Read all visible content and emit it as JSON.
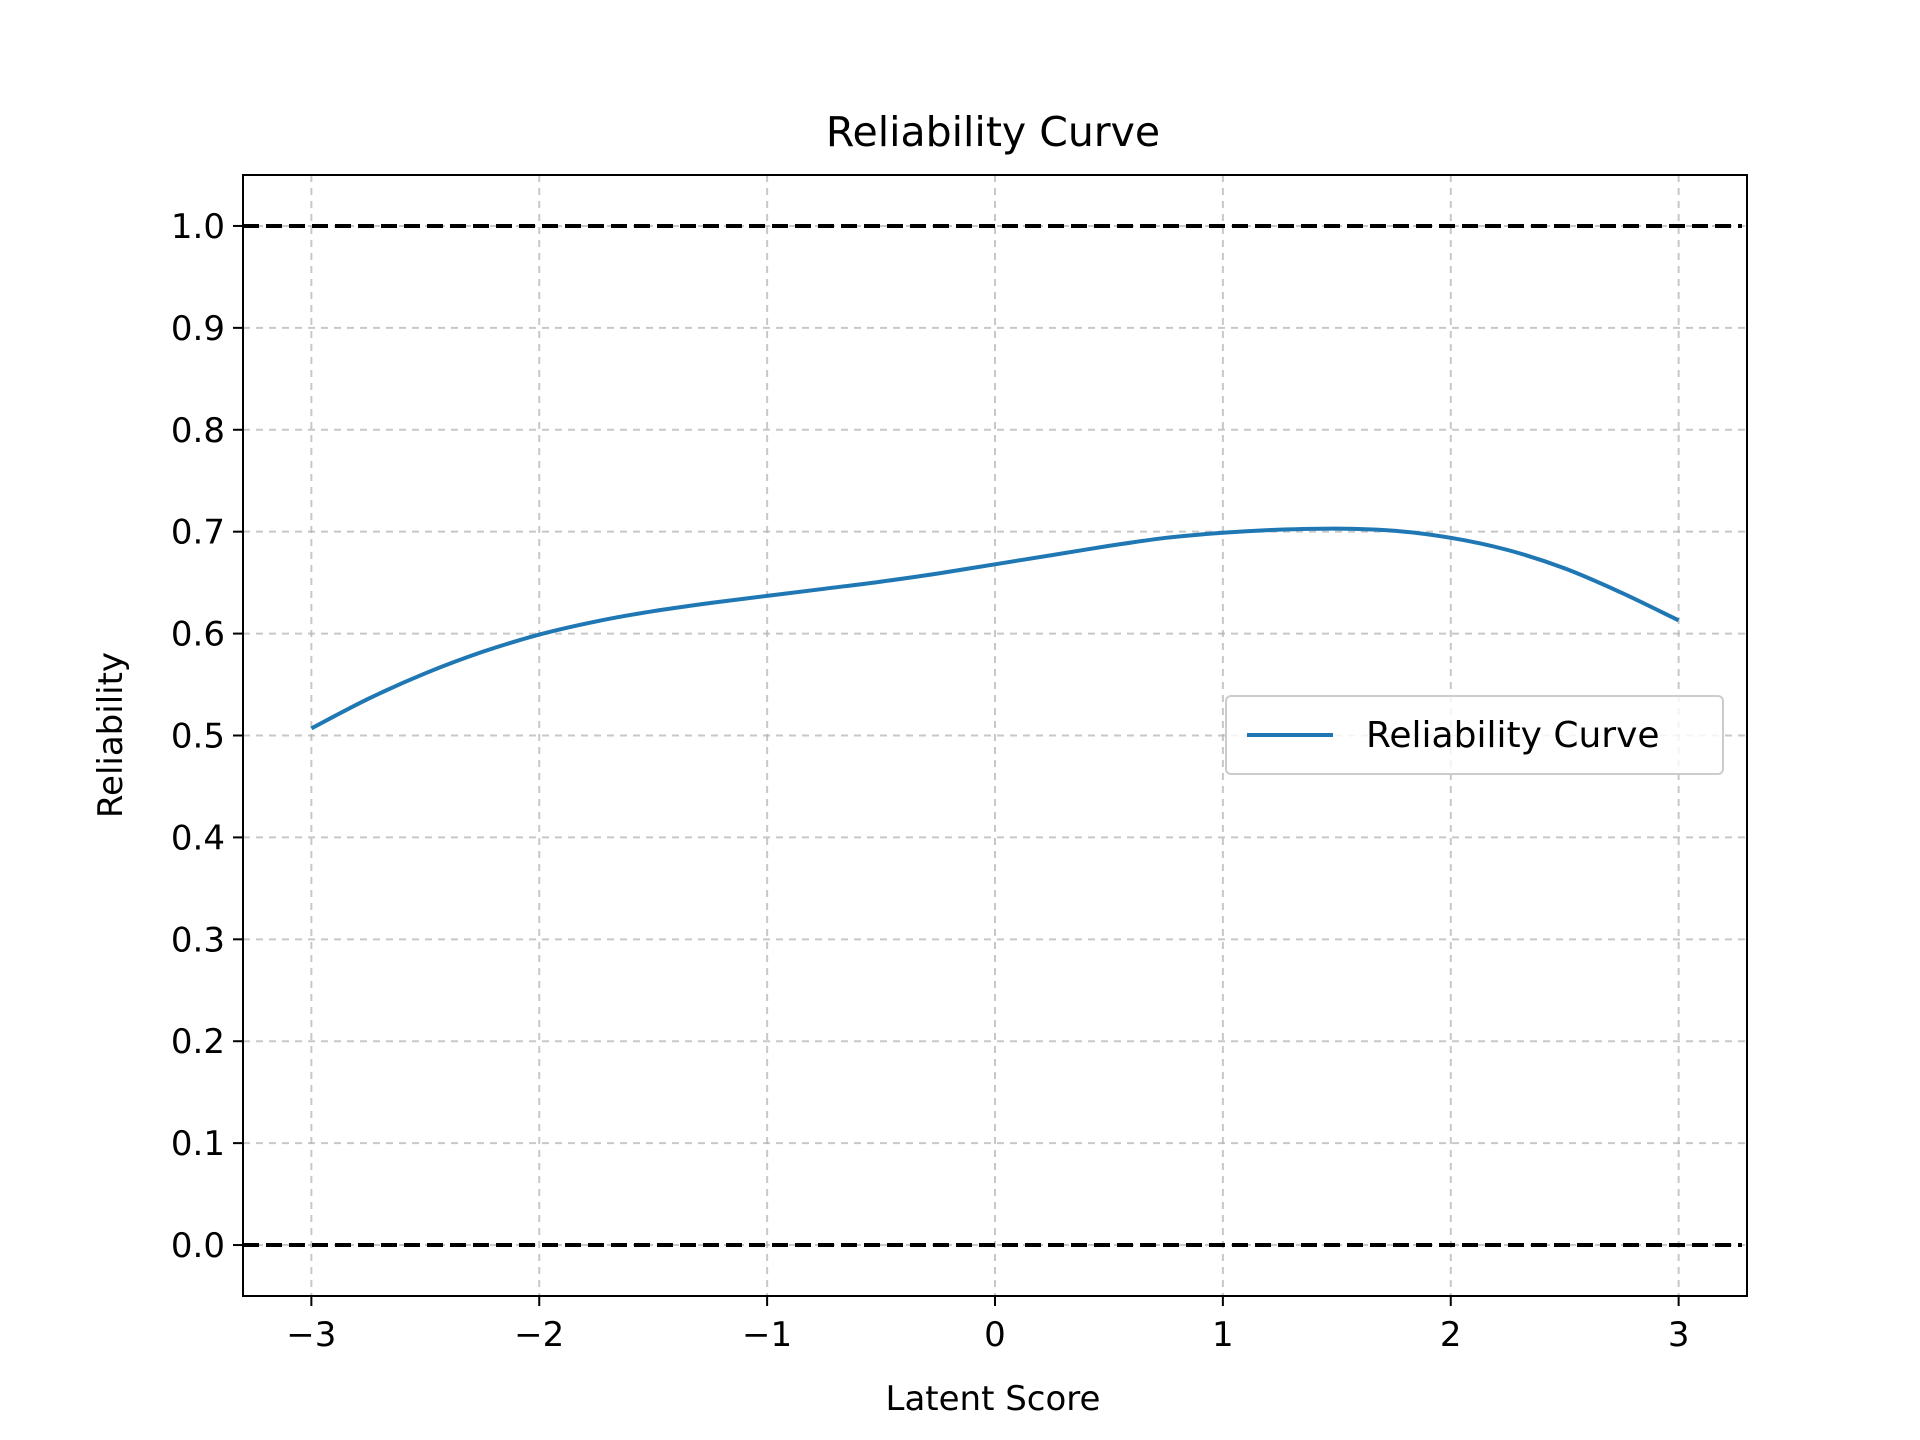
{
  "chart_data": {
    "type": "line",
    "title": "Reliability Curve",
    "xlabel": "Latent Score",
    "ylabel": "Reliability",
    "xlim": [
      -3.3,
      3.3
    ],
    "ylim": [
      -0.05,
      1.05
    ],
    "grid": true,
    "legend_position": "center-right",
    "x_ticks": [
      -3,
      -2,
      -1,
      0,
      1,
      2,
      3
    ],
    "x_tick_labels": [
      "−3",
      "−2",
      "−1",
      "0",
      "1",
      "2",
      "3"
    ],
    "y_ticks": [
      0.0,
      0.1,
      0.2,
      0.3,
      0.4,
      0.5,
      0.6,
      0.7,
      0.8,
      0.9,
      1.0
    ],
    "y_tick_labels": [
      "0.0",
      "0.1",
      "0.2",
      "0.3",
      "0.4",
      "0.5",
      "0.6",
      "0.7",
      "0.8",
      "0.9",
      "1.0"
    ],
    "reference_lines": [
      {
        "axis": "y",
        "value": 1.0,
        "style": "dashed",
        "color": "#000000"
      },
      {
        "axis": "y",
        "value": 0.0,
        "style": "dashed",
        "color": "#000000"
      }
    ],
    "series": [
      {
        "name": "Reliability Curve",
        "color": "#1f77b4",
        "x": [
          -3.0,
          -2.75,
          -2.5,
          -2.25,
          -2.0,
          -1.75,
          -1.5,
          -1.25,
          -1.0,
          -0.75,
          -0.5,
          -0.25,
          0.0,
          0.25,
          0.5,
          0.75,
          1.0,
          1.25,
          1.5,
          1.75,
          2.0,
          2.25,
          2.5,
          2.75,
          3.0
        ],
        "y": [
          0.507,
          0.536,
          0.561,
          0.582,
          0.599,
          0.612,
          0.622,
          0.63,
          0.637,
          0.644,
          0.651,
          0.659,
          0.668,
          0.677,
          0.686,
          0.694,
          0.699,
          0.702,
          0.703,
          0.701,
          0.694,
          0.682,
          0.664,
          0.64,
          0.613
        ]
      }
    ]
  }
}
